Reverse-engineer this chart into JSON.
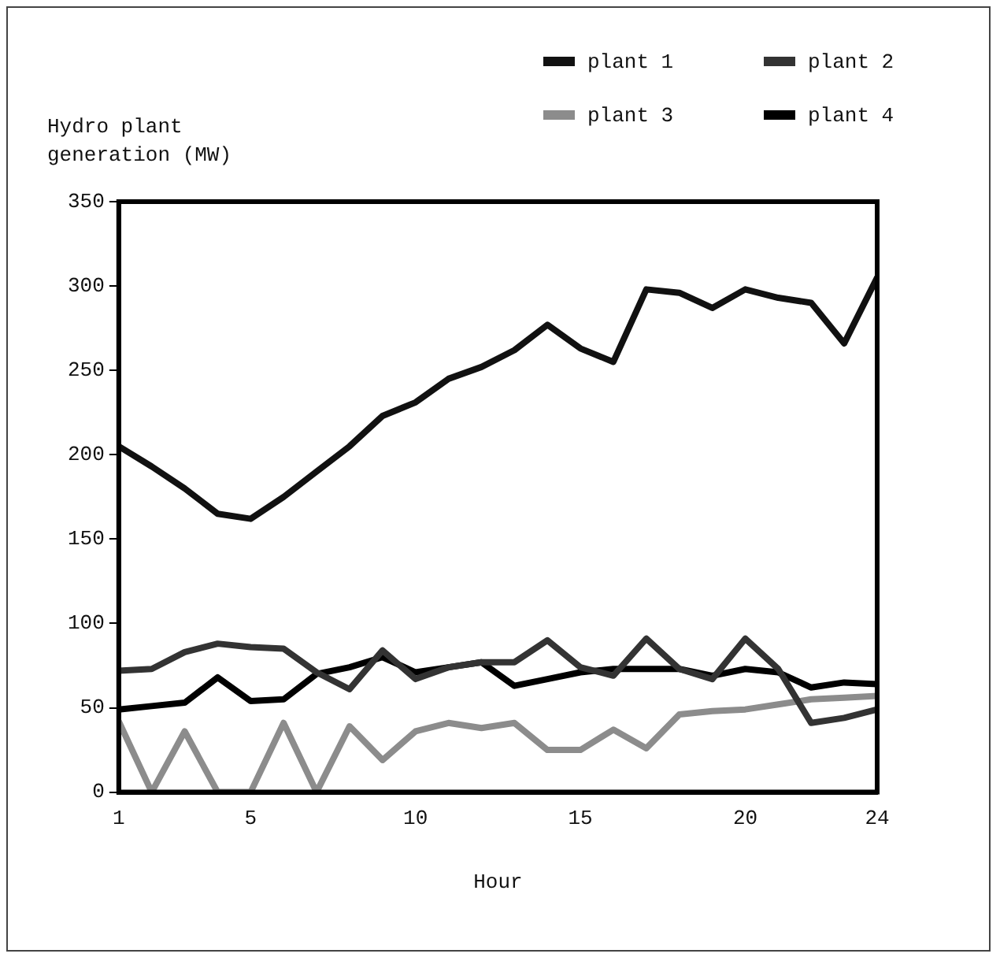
{
  "chart_data": {
    "type": "line",
    "xlabel": "Hour",
    "ylabel": "Hydro plant generation (MW)",
    "x": [
      1,
      2,
      3,
      4,
      5,
      6,
      7,
      8,
      9,
      10,
      11,
      12,
      13,
      14,
      15,
      16,
      17,
      18,
      19,
      20,
      21,
      22,
      23,
      24
    ],
    "series": [
      {
        "name": "plant 1",
        "color": "#111111",
        "values": [
          205,
          193,
          180,
          165,
          162,
          175,
          190,
          205,
          223,
          231,
          245,
          252,
          262,
          277,
          263,
          255,
          298,
          296,
          287,
          298,
          293,
          290,
          266,
          305
        ]
      },
      {
        "name": "plant 2",
        "color": "#333333",
        "values": [
          72,
          73,
          83,
          88,
          86,
          85,
          71,
          61,
          84,
          67,
          74,
          77,
          77,
          90,
          74,
          69,
          91,
          73,
          67,
          91,
          73,
          41,
          44,
          49
        ]
      },
      {
        "name": "plant 3",
        "color": "#8c8c8c",
        "values": [
          42,
          0,
          36,
          0,
          0,
          41,
          0,
          39,
          19,
          36,
          41,
          38,
          41,
          25,
          25,
          37,
          26,
          46,
          48,
          49,
          52,
          55,
          56,
          57
        ]
      },
      {
        "name": "plant 4",
        "color": "#000000",
        "values": [
          49,
          51,
          53,
          68,
          54,
          55,
          70,
          74,
          80,
          71,
          74,
          77,
          63,
          67,
          71,
          73,
          73,
          73,
          69,
          73,
          71,
          62,
          65,
          64
        ]
      }
    ],
    "xlim": [
      1,
      24
    ],
    "xticks": [
      1,
      5,
      10,
      15,
      20,
      24
    ],
    "ylim": [
      0,
      350
    ],
    "yticks": [
      0,
      50,
      100,
      150,
      200,
      250,
      300,
      350
    ],
    "grid": false,
    "legend": "top right",
    "marker": "none",
    "line_style": "solid"
  }
}
